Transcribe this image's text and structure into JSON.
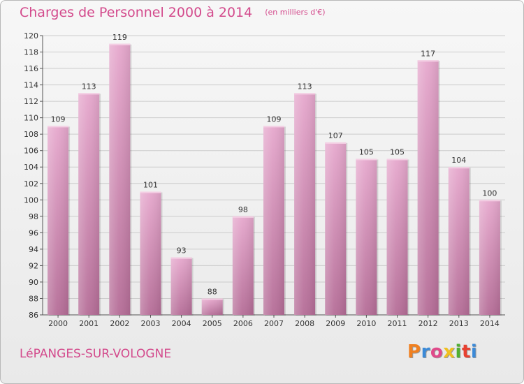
{
  "header": {
    "title": "Charges de Personnel 2000 à 2014",
    "subtitle": "(en milliers d'€)"
  },
  "footer": {
    "commune": "LéPANGES-SUR-VOLOGNE",
    "logo": "Proxiti",
    "logo_colors": [
      "#f08020",
      "#3b8ad8",
      "#e04a8a",
      "#f0c020",
      "#50b030",
      "#e84030",
      "#3b8ad8"
    ]
  },
  "colors": {
    "title": "#d34a8c",
    "bar_top": "#e6a8cd",
    "bar_bottom": "#b56d97",
    "grid": "#cccccc"
  },
  "chart_data": {
    "type": "bar",
    "title": "Charges de Personnel 2000 à 2014",
    "subtitle": "(en milliers d'€)",
    "categories": [
      "2000",
      "2001",
      "2002",
      "2003",
      "2004",
      "2005",
      "2006",
      "2007",
      "2008",
      "2009",
      "2010",
      "2011",
      "2012",
      "2013",
      "2014"
    ],
    "values": [
      109,
      113,
      119,
      101,
      93,
      88,
      98,
      109,
      113,
      107,
      105,
      105,
      117,
      104,
      100
    ],
    "ylim": [
      86,
      120
    ],
    "yticks": [
      86,
      88,
      90,
      92,
      94,
      96,
      98,
      100,
      102,
      104,
      106,
      108,
      110,
      112,
      114,
      116,
      118,
      120
    ],
    "xlabel": "",
    "ylabel": "",
    "grid": true,
    "data_labels": true
  }
}
